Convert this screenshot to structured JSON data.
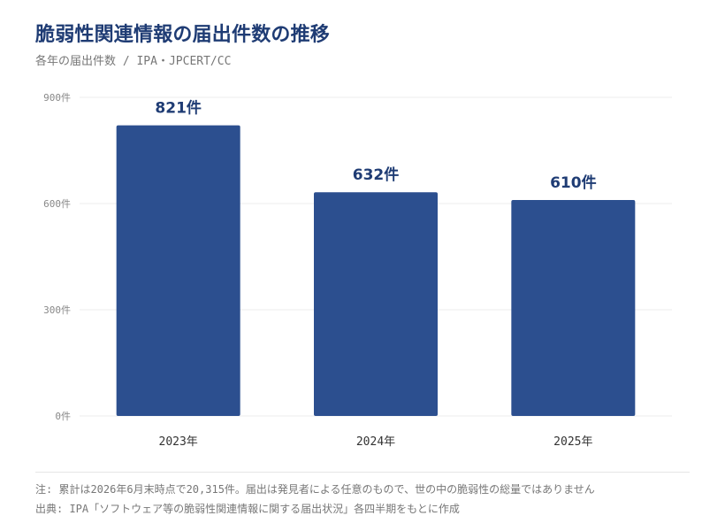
{
  "header": {
    "title": "脆弱性関連情報の届出件数の推移",
    "subtitle": "各年の届出件数 / IPA・JPCERT/CC"
  },
  "chart_data": {
    "type": "bar",
    "categories": [
      "2023年",
      "2024年",
      "2025年"
    ],
    "values": [
      821,
      632,
      610
    ],
    "data_labels": [
      "821件",
      "632件",
      "610件"
    ],
    "yticks": [
      0,
      300,
      600,
      900
    ],
    "ytick_labels": [
      "0件",
      "300件",
      "600件",
      "900件"
    ],
    "ylim": [
      0,
      900
    ],
    "grid": true,
    "legend": "none",
    "bar_color": "#2c4f8f",
    "label_color": "#1f3c74"
  },
  "footer": {
    "note": "注: 累計は2026年6月末時点で20,315件。届出は発見者による任意のもので、世の中の脆弱性の総量ではありません",
    "source": "出典: IPA「ソフトウェア等の脆弱性関連情報に関する届出状況」各四半期をもとに作成"
  }
}
